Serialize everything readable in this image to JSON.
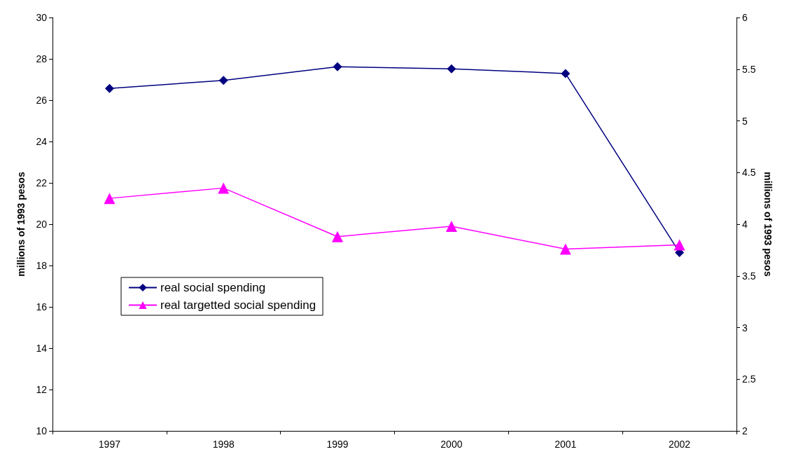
{
  "chart_data": {
    "type": "line",
    "categories": [
      "1997",
      "1998",
      "1999",
      "2000",
      "2001",
      "2002"
    ],
    "ylabel": "millions of 1993 pesos",
    "y2label": "millions of 1993 pesos",
    "ylim": [
      10,
      30
    ],
    "yticks": [
      10,
      12,
      14,
      16,
      18,
      20,
      22,
      24,
      26,
      28,
      30
    ],
    "y2lim": [
      2,
      6
    ],
    "y2ticks": [
      2,
      2.5,
      3,
      3.5,
      4,
      4.5,
      5,
      5.5,
      6
    ],
    "series": [
      {
        "name": "real social spending",
        "color": "#000080",
        "marker": "diamond",
        "values": [
          26.57,
          26.96,
          27.62,
          27.52,
          27.29,
          18.63
        ]
      },
      {
        "name": "real targetted social spending",
        "color": "#ff00ff",
        "marker": "triangle",
        "axis": "y2",
        "values": [
          4.25,
          4.35,
          3.88,
          3.98,
          3.76,
          3.8
        ]
      }
    ],
    "legend": "left",
    "grid": false,
    "line_style": "solid"
  }
}
